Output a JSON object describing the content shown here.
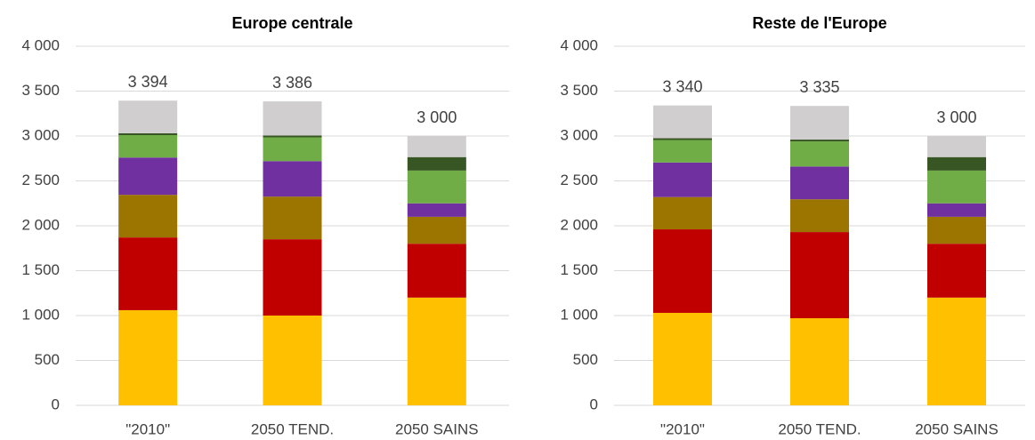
{
  "chart_data": [
    {
      "type": "bar",
      "stacked": true,
      "title": "Europe centrale",
      "categories": [
        "\"2010\"",
        "2050 TEND.",
        "2050 SAINS"
      ],
      "series": [
        {
          "color": "#ffc000",
          "values": [
            1060,
            1000,
            1200
          ]
        },
        {
          "color": "#c00000",
          "values": [
            810,
            850,
            600
          ]
        },
        {
          "color": "#9c7400",
          "values": [
            475,
            475,
            300
          ]
        },
        {
          "color": "#7030a0",
          "values": [
            415,
            395,
            150
          ]
        },
        {
          "color": "#70ad47",
          "values": [
            250,
            265,
            365
          ]
        },
        {
          "color": "#375623",
          "values": [
            20,
            20,
            150
          ]
        },
        {
          "color": "#d0cece",
          "values": [
            364,
            381,
            235
          ]
        }
      ],
      "totals": [
        3394,
        3386,
        3000
      ],
      "total_labels": [
        "3 394",
        "3 386",
        "3 000"
      ],
      "ylim": [
        0,
        4000
      ],
      "yticks": [
        0,
        500,
        {
          "value": 1000,
          "label": "1 000"
        },
        {
          "value": 1500,
          "label": "1 500"
        },
        {
          "value": 2000,
          "label": "2 000"
        },
        {
          "value": 2500,
          "label": "2 500"
        },
        {
          "value": 3000,
          "label": "3 000"
        },
        {
          "value": 3500,
          "label": "3 500"
        },
        {
          "value": 4000,
          "label": "4 000"
        }
      ],
      "grid": true
    },
    {
      "type": "bar",
      "stacked": true,
      "title": "Reste de l'Europe",
      "categories": [
        "\"2010\"",
        "2050 TEND.",
        "2050 SAINS"
      ],
      "series": [
        {
          "color": "#ffc000",
          "values": [
            1030,
            970,
            1200
          ]
        },
        {
          "color": "#c00000",
          "values": [
            930,
            960,
            600
          ]
        },
        {
          "color": "#9c7400",
          "values": [
            360,
            365,
            300
          ]
        },
        {
          "color": "#7030a0",
          "values": [
            385,
            365,
            150
          ]
        },
        {
          "color": "#70ad47",
          "values": [
            250,
            280,
            365
          ]
        },
        {
          "color": "#375623",
          "values": [
            20,
            20,
            150
          ]
        },
        {
          "color": "#d0cece",
          "values": [
            365,
            375,
            235
          ]
        }
      ],
      "totals": [
        3340,
        3335,
        3000
      ],
      "total_labels": [
        "3 340",
        "3 335",
        "3 000"
      ],
      "ylim": [
        0,
        4000
      ],
      "yticks": [
        0,
        500,
        {
          "value": 1000,
          "label": "1 000"
        },
        {
          "value": 1500,
          "label": "1 500"
        },
        {
          "value": 2000,
          "label": "2 000"
        },
        {
          "value": 2500,
          "label": "2 500"
        },
        {
          "value": 3000,
          "label": "3 000"
        },
        {
          "value": 3500,
          "label": "3 500"
        },
        {
          "value": 4000,
          "label": "4 000"
        }
      ],
      "grid": true
    }
  ]
}
